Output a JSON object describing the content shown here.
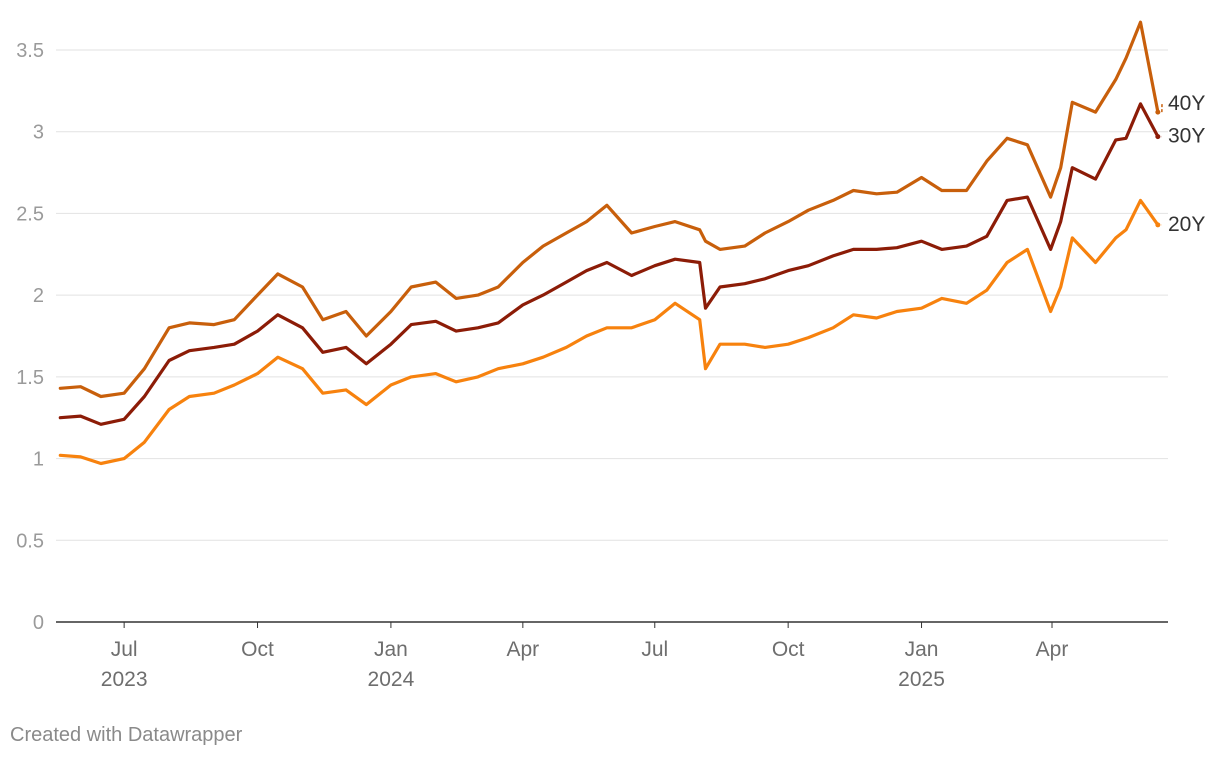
{
  "credit": "Created with Datawrapper",
  "chart_data": {
    "type": "line",
    "ylim": [
      0,
      3.5
    ],
    "yticks": [
      0,
      0.5,
      1,
      1.5,
      2,
      2.5,
      3,
      3.5
    ],
    "ytick_labels": [
      "0",
      "0.5",
      "1",
      "1.5",
      "2",
      "2.5",
      "3",
      "3.5"
    ],
    "xlim": [
      "2023-05-15",
      "2025-06-20"
    ],
    "xticks": [
      {
        "date": "2023-07-01",
        "label": "Jul",
        "sublabel": "2023"
      },
      {
        "date": "2023-10-01",
        "label": "Oct",
        "sublabel": ""
      },
      {
        "date": "2024-01-01",
        "label": "Jan",
        "sublabel": "2024"
      },
      {
        "date": "2024-04-01",
        "label": "Apr",
        "sublabel": ""
      },
      {
        "date": "2024-07-01",
        "label": "Jul",
        "sublabel": ""
      },
      {
        "date": "2024-10-01",
        "label": "Oct",
        "sublabel": ""
      },
      {
        "date": "2025-01-01",
        "label": "Jan",
        "sublabel": "2025"
      },
      {
        "date": "2025-04-01",
        "label": "Apr",
        "sublabel": ""
      }
    ],
    "grid": true,
    "legend": "direct labels at right end of lines",
    "series": [
      {
        "name": "40Y",
        "color": "#c85f0b",
        "x": [
          "2023-05-18",
          "2023-06-01",
          "2023-06-15",
          "2023-07-01",
          "2023-07-15",
          "2023-08-01",
          "2023-08-15",
          "2023-09-01",
          "2023-09-15",
          "2023-10-01",
          "2023-10-15",
          "2023-11-01",
          "2023-11-15",
          "2023-12-01",
          "2023-12-15",
          "2024-01-01",
          "2024-01-15",
          "2024-02-01",
          "2024-02-15",
          "2024-03-01",
          "2024-03-15",
          "2024-04-01",
          "2024-04-15",
          "2024-05-01",
          "2024-05-15",
          "2024-05-29",
          "2024-06-15",
          "2024-07-01",
          "2024-07-15",
          "2024-08-01",
          "2024-08-05",
          "2024-08-15",
          "2024-09-01",
          "2024-09-15",
          "2024-10-01",
          "2024-10-15",
          "2024-11-01",
          "2024-11-15",
          "2024-12-01",
          "2024-12-15",
          "2025-01-01",
          "2025-01-15",
          "2025-02-01",
          "2025-02-15",
          "2025-03-01",
          "2025-03-15",
          "2025-03-31",
          "2025-04-07",
          "2025-04-15",
          "2025-05-01",
          "2025-05-15",
          "2025-05-22",
          "2025-06-01",
          "2025-06-13"
        ],
        "y": [
          1.43,
          1.44,
          1.38,
          1.4,
          1.55,
          1.8,
          1.83,
          1.82,
          1.85,
          2.0,
          2.13,
          2.05,
          1.85,
          1.9,
          1.75,
          1.9,
          2.05,
          2.08,
          1.98,
          2.0,
          2.05,
          2.2,
          2.3,
          2.38,
          2.45,
          2.55,
          2.38,
          2.42,
          2.45,
          2.4,
          2.33,
          2.28,
          2.3,
          2.38,
          2.45,
          2.52,
          2.58,
          2.64,
          2.62,
          2.63,
          2.72,
          2.64,
          2.64,
          2.82,
          2.96,
          2.92,
          2.6,
          2.78,
          3.18,
          3.12,
          3.32,
          3.45,
          3.67,
          3.12
        ]
      },
      {
        "name": "30Y",
        "color": "#8c1c07",
        "x": [
          "2023-05-18",
          "2023-06-01",
          "2023-06-15",
          "2023-07-01",
          "2023-07-15",
          "2023-08-01",
          "2023-08-15",
          "2023-09-01",
          "2023-09-15",
          "2023-10-01",
          "2023-10-15",
          "2023-11-01",
          "2023-11-15",
          "2023-12-01",
          "2023-12-15",
          "2024-01-01",
          "2024-01-15",
          "2024-02-01",
          "2024-02-15",
          "2024-03-01",
          "2024-03-15",
          "2024-04-01",
          "2024-04-15",
          "2024-05-01",
          "2024-05-15",
          "2024-05-29",
          "2024-06-15",
          "2024-07-01",
          "2024-07-15",
          "2024-08-01",
          "2024-08-05",
          "2024-08-15",
          "2024-09-01",
          "2024-09-15",
          "2024-10-01",
          "2024-10-15",
          "2024-11-01",
          "2024-11-15",
          "2024-12-01",
          "2024-12-15",
          "2025-01-01",
          "2025-01-15",
          "2025-02-01",
          "2025-02-15",
          "2025-03-01",
          "2025-03-15",
          "2025-03-31",
          "2025-04-07",
          "2025-04-15",
          "2025-05-01",
          "2025-05-15",
          "2025-05-22",
          "2025-06-01",
          "2025-06-13"
        ],
        "y": [
          1.25,
          1.26,
          1.21,
          1.24,
          1.38,
          1.6,
          1.66,
          1.68,
          1.7,
          1.78,
          1.88,
          1.8,
          1.65,
          1.68,
          1.58,
          1.7,
          1.82,
          1.84,
          1.78,
          1.8,
          1.83,
          1.94,
          2.0,
          2.08,
          2.15,
          2.2,
          2.12,
          2.18,
          2.22,
          2.2,
          1.92,
          2.05,
          2.07,
          2.1,
          2.15,
          2.18,
          2.24,
          2.28,
          2.28,
          2.29,
          2.33,
          2.28,
          2.3,
          2.36,
          2.58,
          2.6,
          2.28,
          2.45,
          2.78,
          2.71,
          2.95,
          2.96,
          3.17,
          2.97
        ]
      },
      {
        "name": "20Y",
        "color": "#f7820e",
        "x": [
          "2023-05-18",
          "2023-06-01",
          "2023-06-15",
          "2023-07-01",
          "2023-07-15",
          "2023-08-01",
          "2023-08-15",
          "2023-09-01",
          "2023-09-15",
          "2023-10-01",
          "2023-10-15",
          "2023-11-01",
          "2023-11-15",
          "2023-12-01",
          "2023-12-15",
          "2024-01-01",
          "2024-01-15",
          "2024-02-01",
          "2024-02-15",
          "2024-03-01",
          "2024-03-15",
          "2024-04-01",
          "2024-04-15",
          "2024-05-01",
          "2024-05-15",
          "2024-05-29",
          "2024-06-15",
          "2024-07-01",
          "2024-07-15",
          "2024-08-01",
          "2024-08-05",
          "2024-08-15",
          "2024-09-01",
          "2024-09-15",
          "2024-10-01",
          "2024-10-15",
          "2024-11-01",
          "2024-11-15",
          "2024-12-01",
          "2024-12-15",
          "2025-01-01",
          "2025-01-15",
          "2025-02-01",
          "2025-02-15",
          "2025-03-01",
          "2025-03-15",
          "2025-03-31",
          "2025-04-07",
          "2025-04-15",
          "2025-05-01",
          "2025-05-15",
          "2025-05-22",
          "2025-06-01",
          "2025-06-13"
        ],
        "y": [
          1.02,
          1.01,
          0.97,
          1.0,
          1.1,
          1.3,
          1.38,
          1.4,
          1.45,
          1.52,
          1.62,
          1.55,
          1.4,
          1.42,
          1.33,
          1.45,
          1.5,
          1.52,
          1.47,
          1.5,
          1.55,
          1.58,
          1.62,
          1.68,
          1.75,
          1.8,
          1.8,
          1.85,
          1.95,
          1.85,
          1.55,
          1.7,
          1.7,
          1.68,
          1.7,
          1.74,
          1.8,
          1.88,
          1.86,
          1.9,
          1.92,
          1.98,
          1.95,
          2.03,
          2.2,
          2.28,
          1.9,
          2.05,
          2.35,
          2.2,
          2.35,
          2.4,
          2.58,
          2.43
        ]
      }
    ]
  }
}
